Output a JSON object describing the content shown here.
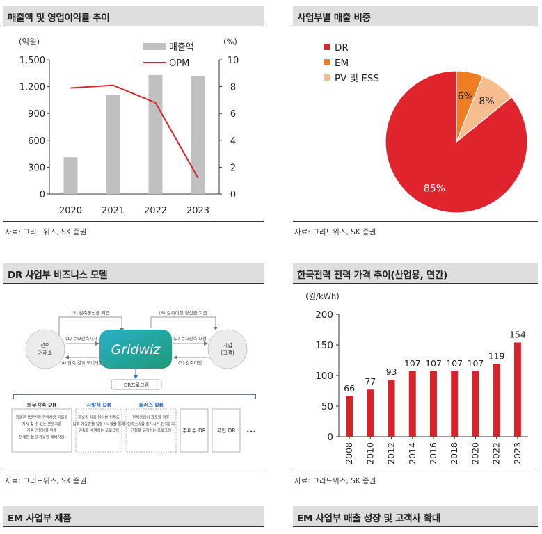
{
  "panels": {
    "sales_opm": {
      "title": "매출액 및 영업이익률 추이",
      "source": "자료: 그리드위즈, SK 증권",
      "left_unit": "(억원)",
      "right_unit": "(%)",
      "legend_bar": "매출액",
      "legend_line": "OPM"
    },
    "biz_share": {
      "title": "사업부별 매출 비중",
      "source": "자료: 그리드위즈, SK 증권"
    },
    "dr_model": {
      "title": "DR 사업부 비즈니스 모델",
      "source": "자료: 그리드위즈, SK 증권",
      "logo_text": "Gridwiz",
      "left_node": [
        "전력",
        "거래소"
      ],
      "right_node": [
        "기업",
        "(고객)"
      ],
      "top_left_arrow": "(5) 감축정산금 지급",
      "top_right_arrow": "(6) 감축이행 정산금 지급",
      "l1": "(1) 수요감축지시",
      "l2": "(4) 감축 결과 모니터링",
      "r1": "(2) 수요감축 요청",
      "r2": "(3) 감축이행",
      "program_label": "DR프로그램",
      "programs": [
        {
          "name": "의무감축 DR",
          "desc": [
            "등록된 용량만큼 전력사용 감축을",
            "지시 할 수 있는 프로그램",
            "계통 안정성을 위해",
            "언제든 동원 가능한 예비자원"
          ],
          "color": "#333333"
        },
        {
          "name": "자발적 DR",
          "desc": [
            "자발적 감축 참여를 전제로",
            "감축 예상량을 입찰 / 낙찰을 통해",
            "감축을 수행하는 프로그램"
          ],
          "color": "#2f6fd6"
        },
        {
          "name": "플러스 DR",
          "desc": [
            "전력공급이 과도할 경우",
            "전력소비를 증가시켜 전력망의",
            "균형을 유지하는 프로그램"
          ],
          "color": "#2f6fd6"
        },
        {
          "name": "주파수 DR",
          "desc": [],
          "color": "#333333"
        },
        {
          "name": "국민 DR",
          "desc": [],
          "color": "#333333"
        }
      ],
      "ellipsis": "•••"
    },
    "kepco_price": {
      "title": "한국전력 전력 가격 추이(산업용, 연간)",
      "source": "자료: 그리드위즈, SK 증권",
      "unit": "(원/kWh)"
    },
    "em_products": {
      "title": "EM 사업부 제품"
    },
    "em_growth": {
      "title": "EM 사업부 매출 성장 및 고객사 확대"
    }
  },
  "chart_data": [
    {
      "type": "bar",
      "categories": [
        "2020",
        "2021",
        "2022",
        "2023"
      ],
      "series": [
        {
          "name": "매출액",
          "values": [
            410,
            1110,
            1330,
            1320
          ],
          "axis": "left",
          "color": "#c0c0c0"
        },
        {
          "name": "OPM",
          "type": "line",
          "values": [
            7.9,
            8.1,
            6.8,
            1.2
          ],
          "axis": "right",
          "color": "#d4252d"
        }
      ],
      "ylim": [
        0,
        1500
      ],
      "yticks": [
        "0",
        "300",
        "600",
        "900",
        "1,200",
        "1,500"
      ],
      "y2lim": [
        0,
        10
      ],
      "y2ticks": [
        "0",
        "2",
        "4",
        "6",
        "8",
        "10"
      ],
      "grid": false,
      "legend": "top-right"
    },
    {
      "type": "pie",
      "slices": [
        {
          "name": "DR",
          "value": 85,
          "label": "85%",
          "color": "#e0242e"
        },
        {
          "name": "EM",
          "value": 6,
          "label": "6%",
          "color": "#ef7d22"
        },
        {
          "name": "PV 및 ESS",
          "value": 8,
          "label": "8%",
          "color": "#f7bd8f"
        }
      ],
      "legend": "left"
    },
    {
      "type": "bar",
      "categories": [
        "2008",
        "2010",
        "2012",
        "2014",
        "2016",
        "2018",
        "2020",
        "2022",
        "2023"
      ],
      "values": [
        66,
        77,
        93,
        107,
        107,
        107,
        107,
        119,
        154
      ],
      "data_labels": [
        "66",
        "77",
        "93",
        "107",
        "107",
        "107",
        "107",
        "119",
        "154"
      ],
      "ylim": [
        0,
        200
      ],
      "yticks": [
        "0",
        "50",
        "100",
        "150",
        "200"
      ],
      "color": "#d4252d",
      "grid": false
    }
  ]
}
